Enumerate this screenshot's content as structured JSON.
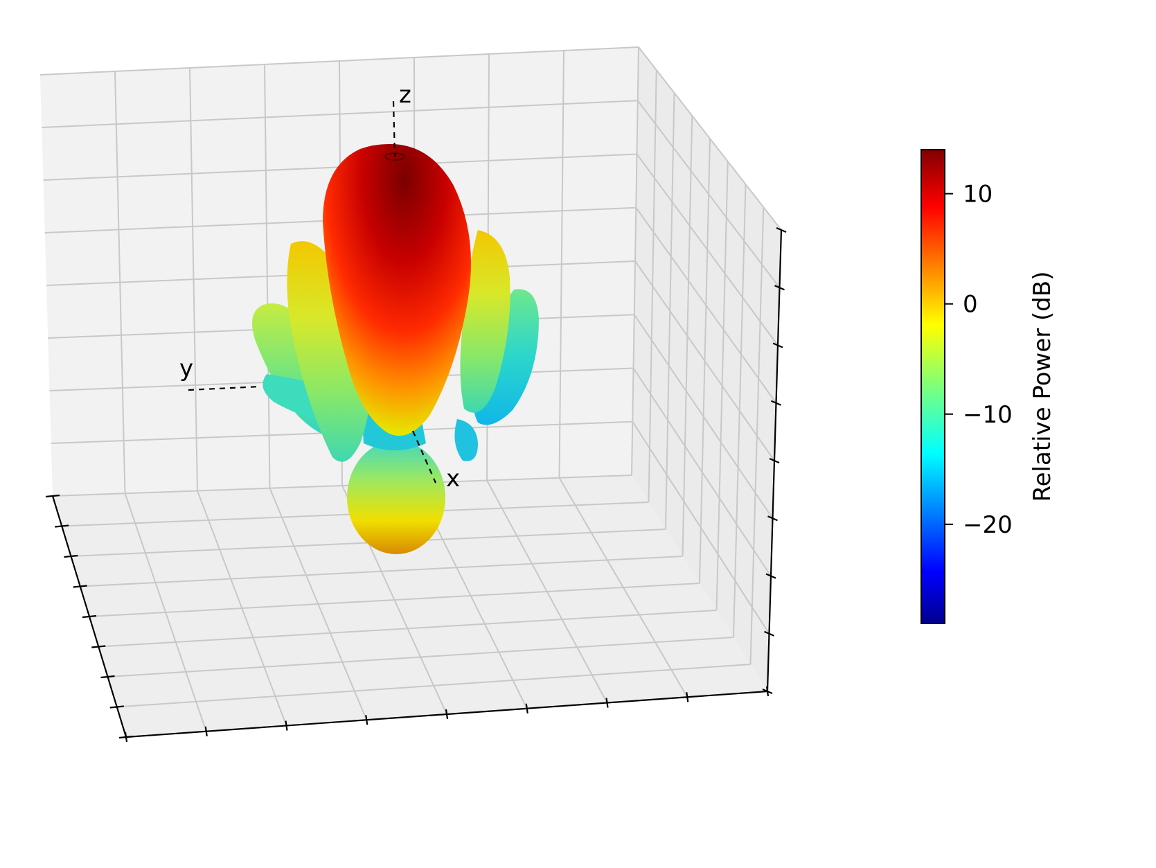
{
  "chart_data": {
    "type": "surface-3d",
    "title": "",
    "axis_labels": {
      "x": "x",
      "y": "y",
      "z": "z"
    },
    "surface": {
      "description_values": "antenna radiation pattern, main lobe along +z, sidelobe rings, back lobe along -z",
      "main_lobe_peak_db": 13.5,
      "sidelobe_level_db": -2,
      "back_lobe_level_db": -4,
      "null_level_db": -15
    },
    "colorbar": {
      "label": "Relative Power (dB)",
      "colormap": "jet",
      "range": [
        -29,
        14
      ],
      "ticks": [
        10,
        0,
        -10,
        -20
      ],
      "tick_labels": [
        "10",
        "0",
        "−10",
        "−20"
      ]
    },
    "grid": true,
    "colors": {
      "pane": "#f2f2f2",
      "grid": "#c8c8c8"
    }
  }
}
